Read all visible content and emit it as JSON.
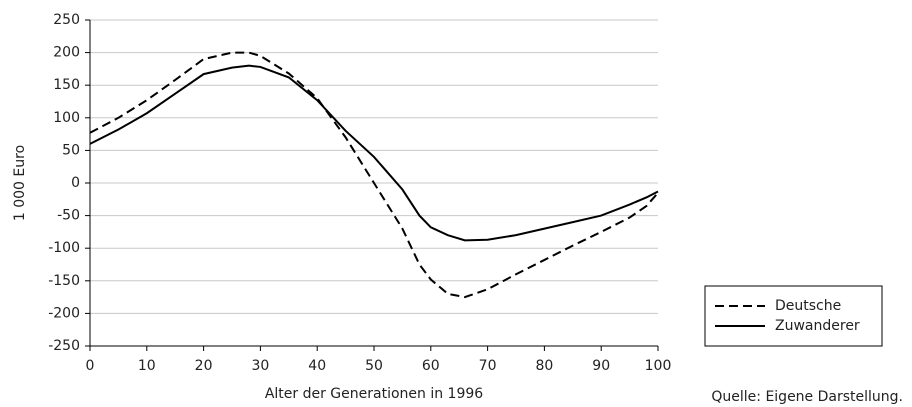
{
  "chart_data": {
    "type": "line",
    "x_label": "Alter der Generationen in 1996",
    "y_label": "1 000 Euro",
    "note": "Quelle: Eigene Darstellung.",
    "x": [
      0,
      5,
      10,
      15,
      20,
      25,
      28,
      30,
      35,
      40,
      45,
      50,
      55,
      58,
      60,
      63,
      66,
      70,
      75,
      80,
      85,
      90,
      95,
      98,
      100
    ],
    "series": [
      {
        "name": "Deutsche",
        "color": "#000000",
        "line_style": "dashed",
        "values": [
          77,
          100,
          127,
          158,
          190,
          200,
          200,
          195,
          168,
          130,
          70,
          0,
          -70,
          -125,
          -148,
          -170,
          -175,
          -163,
          -140,
          -118,
          -96,
          -75,
          -53,
          -35,
          -15
        ]
      },
      {
        "name": "Zuwanderer",
        "color": "#000000",
        "line_style": "solid",
        "values": [
          60,
          82,
          107,
          137,
          167,
          177,
          180,
          178,
          162,
          127,
          80,
          40,
          -10,
          -50,
          -68,
          -80,
          -88,
          -87,
          -80,
          -70,
          -60,
          -50,
          -33,
          -22,
          -13
        ]
      }
    ],
    "xlim": [
      0,
      100
    ],
    "xticks": [
      0,
      10,
      20,
      30,
      40,
      50,
      60,
      70,
      80,
      90,
      100
    ],
    "ylim": [
      -250,
      250
    ],
    "yticks": [
      -250,
      -200,
      -150,
      -100,
      -50,
      0,
      50,
      100,
      150,
      200,
      250
    ],
    "grid": true,
    "legend": "bottom-right"
  }
}
